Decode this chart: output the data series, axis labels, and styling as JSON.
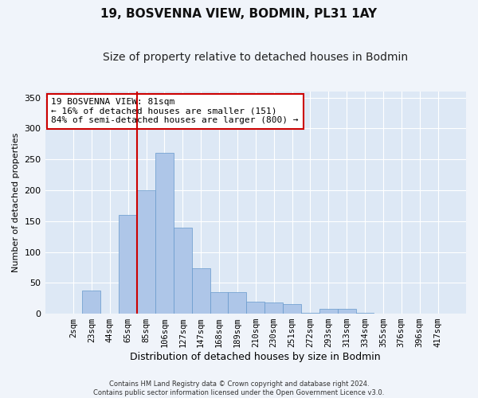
{
  "title": "19, BOSVENNA VIEW, BODMIN, PL31 1AY",
  "subtitle": "Size of property relative to detached houses in Bodmin",
  "xlabel": "Distribution of detached houses by size in Bodmin",
  "ylabel": "Number of detached properties",
  "categories": [
    "2sqm",
    "23sqm",
    "44sqm",
    "65sqm",
    "85sqm",
    "106sqm",
    "127sqm",
    "147sqm",
    "168sqm",
    "189sqm",
    "210sqm",
    "230sqm",
    "251sqm",
    "272sqm",
    "293sqm",
    "313sqm",
    "334sqm",
    "355sqm",
    "376sqm",
    "396sqm",
    "417sqm"
  ],
  "values": [
    0,
    38,
    0,
    160,
    200,
    260,
    140,
    73,
    35,
    35,
    20,
    18,
    15,
    2,
    8,
    8,
    2,
    0,
    0,
    0,
    0
  ],
  "bar_color": "#aec6e8",
  "bar_edgecolor": "#6699cc",
  "background_color": "#dde8f5",
  "grid_color": "#ffffff",
  "property_line_color": "#cc0000",
  "property_line_index": 4,
  "annotation_text": "19 BOSVENNA VIEW: 81sqm\n← 16% of detached houses are smaller (151)\n84% of semi-detached houses are larger (800) →",
  "annotation_box_color": "#ffffff",
  "annotation_box_edgecolor": "#cc0000",
  "ylim": [
    0,
    360
  ],
  "yticks": [
    0,
    50,
    100,
    150,
    200,
    250,
    300,
    350
  ],
  "footnote": "Contains HM Land Registry data © Crown copyright and database right 2024.\nContains public sector information licensed under the Open Government Licence v3.0."
}
